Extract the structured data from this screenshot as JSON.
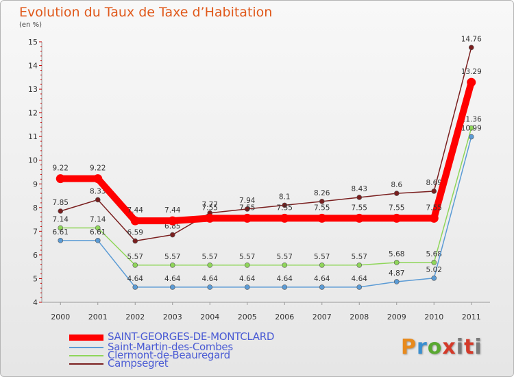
{
  "title": "Evolution du Taux de Taxe d’Habitation",
  "unit": "(en %)",
  "brand": "Proxiti",
  "colors": {
    "brand_p": "#e88a1d",
    "brand_r": "#3a8fd0",
    "brand_o": "#5aa832",
    "brand_x": "#d43a2a",
    "brand_i": "#7a7a7a"
  },
  "chart_data": {
    "type": "line",
    "x": [
      "2000",
      "2001",
      "2002",
      "2003",
      "2004",
      "2005",
      "2006",
      "2007",
      "2008",
      "2009",
      "2010",
      "2011"
    ],
    "ylim": [
      4,
      15
    ],
    "yticks": [
      "4",
      "5",
      "6",
      "7",
      "8",
      "9",
      "10",
      "11",
      "12",
      "13",
      "14",
      "15"
    ],
    "grid": false,
    "legend_position": "bottom-left",
    "series": [
      {
        "name": "Campsegret",
        "color": "#7a1f1f",
        "values": [
          7.85,
          8.33,
          6.59,
          6.85,
          7.77,
          7.94,
          8.1,
          8.26,
          8.43,
          8.6,
          8.69,
          14.76
        ],
        "labels": [
          "7.85",
          "8.33",
          "6.59",
          "6.85",
          "7.77",
          "7.94",
          "8.1",
          "8.26",
          "8.43",
          "8.6",
          "8.69",
          "14.76"
        ]
      },
      {
        "name": "Clermont-de-Beauregard",
        "color": "#8fd65a",
        "values": [
          7.14,
          7.14,
          5.57,
          5.57,
          5.57,
          5.57,
          5.57,
          5.57,
          5.57,
          5.68,
          5.68,
          11.36
        ],
        "labels": [
          "7.14",
          "7.14",
          "5.57",
          "5.57",
          "5.57",
          "5.57",
          "5.57",
          "5.57",
          "5.57",
          "5.68",
          "5.68",
          "11.36"
        ]
      },
      {
        "name": "Saint-Martin-des-Combes",
        "color": "#5b9bd5",
        "values": [
          6.61,
          6.61,
          4.64,
          4.64,
          4.64,
          4.64,
          4.64,
          4.64,
          4.64,
          4.87,
          5.02,
          10.99
        ],
        "labels": [
          "6.61",
          "6.61",
          "4.64",
          "4.64",
          "4.64",
          "4.64",
          "4.64",
          "4.64",
          "4.64",
          "4.87",
          "5.02",
          "10.99"
        ]
      },
      {
        "name": "SAINT-GEORGES-DE-MONTCLARD",
        "color": "#ff0000",
        "values": [
          9.22,
          9.22,
          7.44,
          7.44,
          7.55,
          7.55,
          7.55,
          7.55,
          7.55,
          7.55,
          7.55,
          13.29
        ],
        "labels": [
          "9.22",
          "9.22",
          "7.44",
          "7.44",
          "7.55",
          "7.55",
          "7.55",
          "7.55",
          "7.55",
          "7.55",
          "7.55",
          "13.29"
        ]
      }
    ],
    "legend": [
      "SAINT-GEORGES-DE-MONTCLARD",
      "Saint-Martin-des-Combes",
      "Clermont-de-Beauregard",
      "Campsegret"
    ]
  }
}
